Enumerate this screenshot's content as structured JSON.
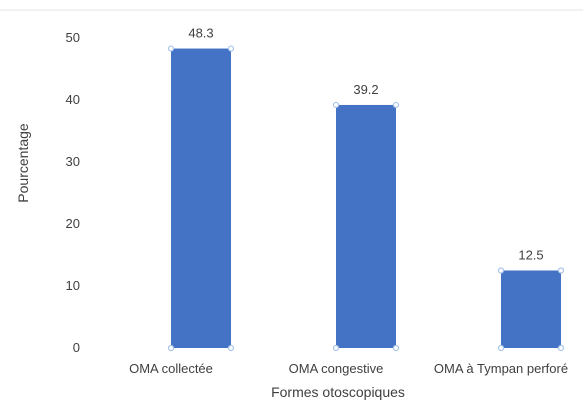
{
  "chart_data": {
    "type": "bar",
    "title": "",
    "xlabel": "Formes otoscopiques",
    "ylabel": "Pourcentage",
    "categories": [
      "OMA collectée",
      "OMA congestive",
      "OMA à Tympan perforé"
    ],
    "values": [
      48.3,
      39.2,
      12.5
    ],
    "data_labels": [
      "48.3",
      "39.2",
      "12.5"
    ],
    "ylim": [
      0,
      50
    ],
    "yticks": [
      0,
      10,
      20,
      30,
      40,
      50
    ],
    "ytick_labels": [
      "0",
      "10",
      "20",
      "30",
      "40",
      "50"
    ],
    "grid": false,
    "legend": "none",
    "bar_color": "#4472c4",
    "bar_highlight_color": "#a9c4eb"
  }
}
